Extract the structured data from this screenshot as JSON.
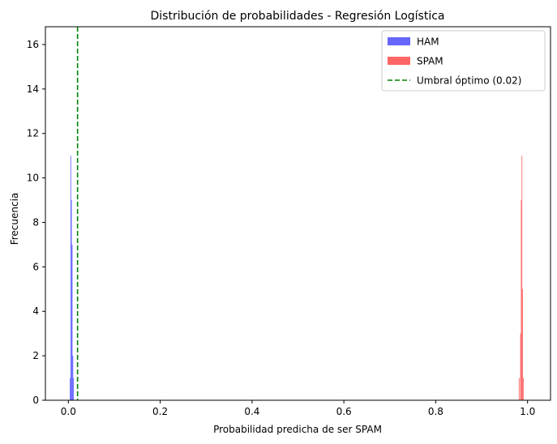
{
  "chart_data": {
    "type": "histogram",
    "title": "Distribución de probabilidades - Regresión Logística",
    "xlabel": "Probabilidad predicha de ser SPAM",
    "ylabel": "Frecuencia",
    "xlim": [
      -0.05,
      1.05
    ],
    "ylim": [
      0,
      16.8
    ],
    "xticks": [
      0.0,
      0.2,
      0.4,
      0.6,
      0.8,
      1.0
    ],
    "xtick_labels": [
      "0.0",
      "0.2",
      "0.4",
      "0.6",
      "0.8",
      "1.0"
    ],
    "yticks": [
      0,
      2,
      4,
      6,
      8,
      10,
      12,
      14,
      16
    ],
    "ytick_labels": [
      "0",
      "2",
      "4",
      "6",
      "8",
      "10",
      "12",
      "14",
      "16"
    ],
    "grid": false,
    "legend_position": "top-right",
    "series": [
      {
        "name": "HAM",
        "color": "#6666ff",
        "bins": [
          {
            "x0": 0.003,
            "x1": 0.0045,
            "count": 1
          },
          {
            "x0": 0.0045,
            "x1": 0.006,
            "count": 11
          },
          {
            "x0": 0.006,
            "x1": 0.0075,
            "count": 9
          },
          {
            "x0": 0.0075,
            "x1": 0.009,
            "count": 7
          },
          {
            "x0": 0.009,
            "x1": 0.0105,
            "count": 2
          },
          {
            "x0": 0.0105,
            "x1": 0.012,
            "count": 1
          }
        ]
      },
      {
        "name": "SPAM",
        "color": "#ff6666",
        "bins": [
          {
            "x0": 0.981,
            "x1": 0.9825,
            "count": 1
          },
          {
            "x0": 0.984,
            "x1": 0.9855,
            "count": 3
          },
          {
            "x0": 0.9855,
            "x1": 0.987,
            "count": 9
          },
          {
            "x0": 0.987,
            "x1": 0.9885,
            "count": 11
          },
          {
            "x0": 0.9885,
            "x1": 0.99,
            "count": 5
          },
          {
            "x0": 0.99,
            "x1": 0.9915,
            "count": 1
          }
        ]
      }
    ],
    "threshold": {
      "name": "Umbral óptimo (0.02)",
      "x": 0.02,
      "color": "#008000",
      "style": "dashed"
    }
  }
}
